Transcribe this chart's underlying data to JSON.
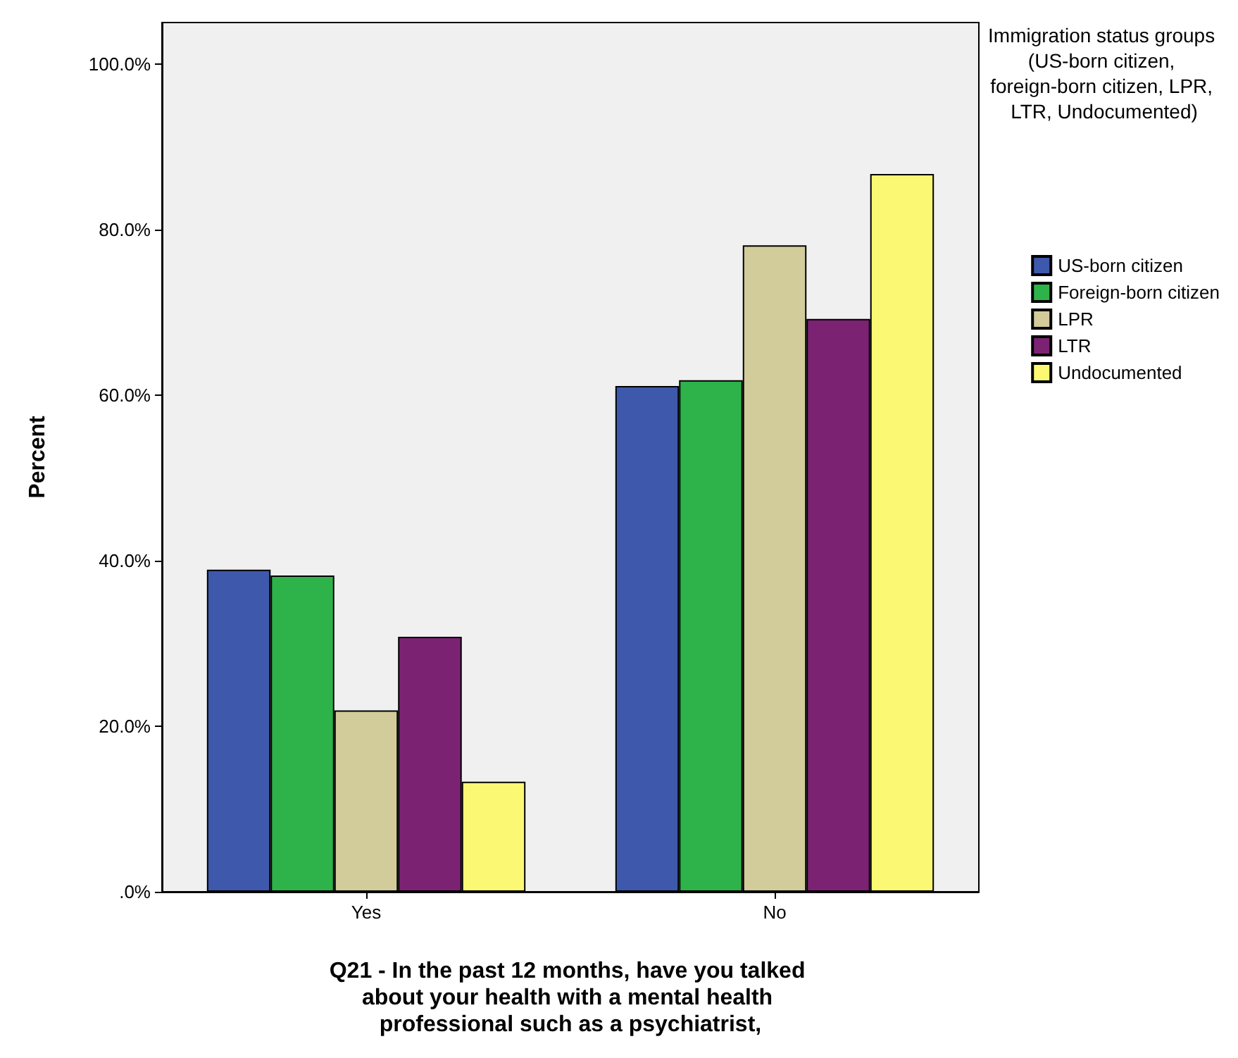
{
  "chart_data": {
    "type": "bar",
    "xlabel": "Q21 - In the past 12 months, have you talked about your health with a mental health professional such as a psychiatrist,",
    "ylabel": "Percent",
    "legend_title": "Immigration status groups (US-born citizen, foreign-born citizen, LPR, LTR, Undocumented)",
    "categories": [
      "Yes",
      "No"
    ],
    "series": [
      {
        "name": "US-born citizen",
        "color": "#3e58ac",
        "values": [
          38.9,
          61.1
        ]
      },
      {
        "name": "Foreign-born citizen",
        "color": "#2db34a",
        "values": [
          38.2,
          61.8
        ]
      },
      {
        "name": "LPR",
        "color": "#d2cc9a",
        "values": [
          21.9,
          78.1
        ]
      },
      {
        "name": "LTR",
        "color": "#7b2372",
        "values": [
          30.8,
          69.2
        ]
      },
      {
        "name": "Undocumented",
        "color": "#fbf873",
        "values": [
          13.3,
          86.7
        ]
      }
    ],
    "ylim": [
      0,
      105
    ],
    "yticks": [
      {
        "value": 0,
        "label": ".0%"
      },
      {
        "value": 20,
        "label": "20.0%"
      },
      {
        "value": 40,
        "label": "40.0%"
      },
      {
        "value": 60,
        "label": "60.0%"
      },
      {
        "value": 80,
        "label": "80.0%"
      },
      {
        "value": 100,
        "label": "100.0%"
      }
    ],
    "grid": false,
    "legend": "right"
  }
}
